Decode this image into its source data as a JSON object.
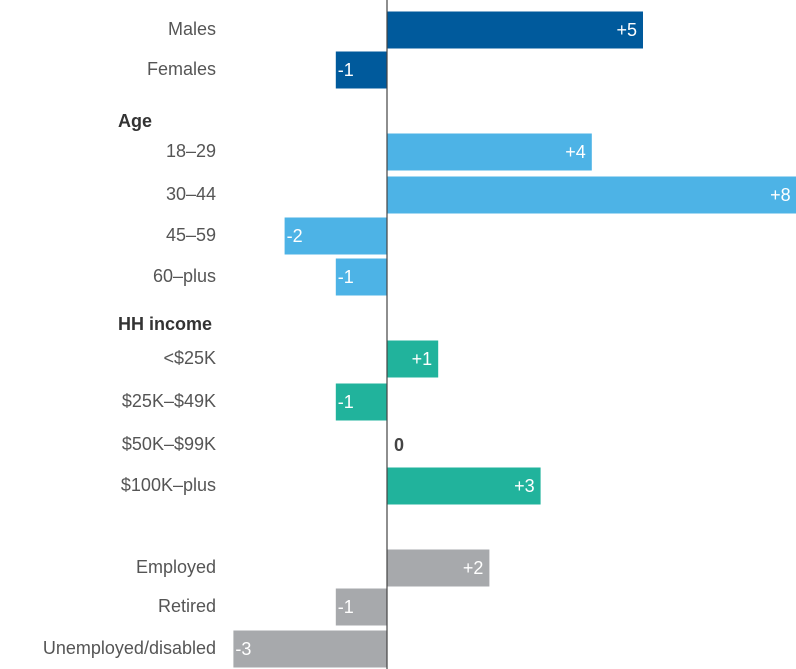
{
  "chart_data": {
    "type": "bar",
    "categories": [
      "Males",
      "Females",
      "Age",
      "18–29",
      "30–44",
      "45–59",
      "60–plus",
      "HH income",
      "<$25K",
      "$25K–$49K",
      "$50K–$99K",
      "$100K–plus",
      null,
      "Employed",
      "Retired",
      "Unemployed/disabled"
    ],
    "values": [
      5,
      -1,
      null,
      4,
      8,
      -2,
      -1,
      null,
      1,
      -1,
      0,
      3,
      null,
      2,
      -1,
      -3
    ],
    "value_labels": [
      "+5",
      "-1",
      null,
      "+4",
      "+8",
      "-2",
      "-1",
      null,
      "+1",
      "-1",
      "0",
      "+3",
      null,
      "+2",
      "-1",
      "-3"
    ],
    "colors": [
      "#005a9c",
      "#005a9c",
      null,
      "#4db3e6",
      "#4db3e6",
      "#4db3e6",
      "#4db3e6",
      null,
      "#21b39c",
      "#21b39c",
      "#21b39c",
      "#21b39c",
      null,
      "#a7a9ac",
      "#a7a9ac",
      "#a7a9ac"
    ]
  }
}
